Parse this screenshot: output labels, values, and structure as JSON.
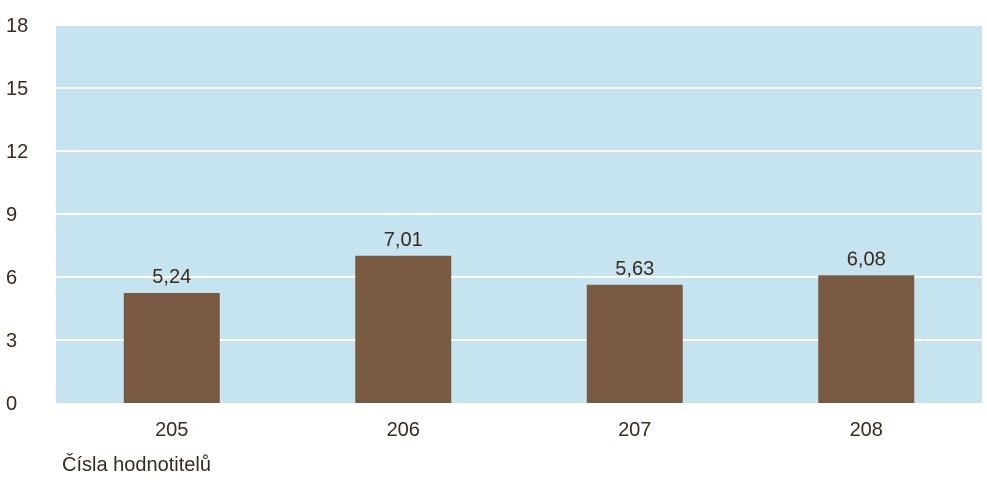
{
  "chart_data": {
    "type": "bar",
    "categories": [
      "205",
      "206",
      "207",
      "208"
    ],
    "values": [
      5.24,
      7.01,
      5.63,
      6.08
    ],
    "value_labels": [
      "5,24",
      "7,01",
      "5,63",
      "6,08"
    ],
    "title": "",
    "xlabel": "Čísla hodnotitelů",
    "ylabel": "",
    "ylim": [
      0,
      18
    ],
    "yticks": [
      "0",
      "3",
      "6",
      "9",
      "12",
      "15",
      "18"
    ],
    "grid": true,
    "legend": "none",
    "colors": {
      "bar": "#785a43",
      "plot_background": "#c5e4ef",
      "gridline": "#ffffff",
      "text": "#3b2a1e"
    }
  }
}
